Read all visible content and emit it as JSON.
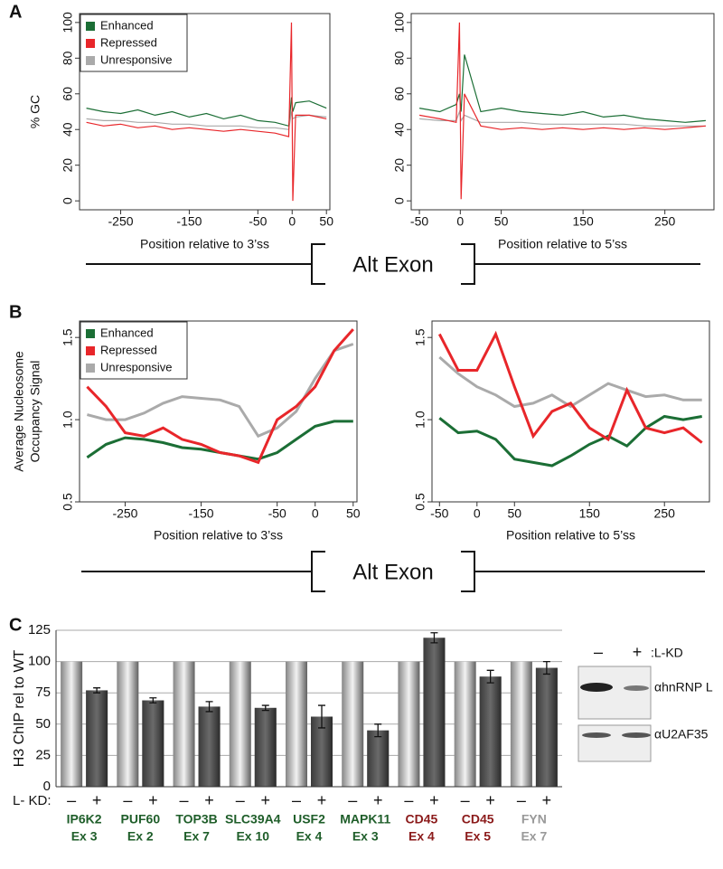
{
  "panel_labels": [
    "A",
    "B",
    "C"
  ],
  "exon_label": "Alt Exon",
  "blot": {
    "lanes": [
      "–",
      "+"
    ],
    "condition": ":L-KD",
    "bands": [
      "αhnRNP L",
      "αU2AF35"
    ]
  },
  "chart_data": [
    {
      "type": "line",
      "ylabel": [
        "% GC"
      ],
      "xlabel": "Position relative to 3’ss",
      "legend": "upper left",
      "x": [
        -300,
        -275,
        -250,
        -225,
        -200,
        -175,
        -150,
        -125,
        -100,
        -75,
        -50,
        -25,
        -5,
        -1,
        1,
        5,
        25,
        50
      ],
      "xlim": [
        -310,
        55
      ],
      "xticks": [
        -250,
        -150,
        -50,
        0,
        50
      ],
      "ylim": [
        -5,
        105
      ],
      "yticks": [
        0,
        20,
        40,
        60,
        80,
        100
      ],
      "series": [
        {
          "name": "Unresponsive",
          "color": "#aaaaaa",
          "values": [
            46,
            45,
            45,
            44,
            44,
            43,
            43,
            42,
            42,
            42,
            41,
            41,
            40,
            50,
            46,
            47,
            48,
            47
          ]
        },
        {
          "name": "Enhanced",
          "color": "#1b6e35",
          "values": [
            52,
            50,
            49,
            51,
            48,
            50,
            47,
            49,
            46,
            48,
            45,
            44,
            42,
            58,
            50,
            55,
            56,
            52
          ]
        },
        {
          "name": "Repressed",
          "color": "#e8262a",
          "values": [
            44,
            42,
            43,
            41,
            42,
            40,
            41,
            40,
            39,
            40,
            39,
            38,
            36,
            100,
            0,
            48,
            48,
            46
          ]
        }
      ]
    },
    {
      "type": "line",
      "x": [
        -50,
        -25,
        -5,
        -1,
        1,
        5,
        25,
        50,
        75,
        100,
        125,
        150,
        175,
        200,
        225,
        250,
        275,
        300
      ],
      "xlim": [
        -60,
        310
      ],
      "xticks": [
        -50,
        0,
        50,
        150,
        250
      ],
      "xlabel": "Position relative to 5’ss",
      "ylim": [
        -5,
        105
      ],
      "yticks": [
        0,
        20,
        40,
        60,
        80,
        100
      ],
      "series": [
        {
          "color": "#aaaaaa",
          "values": [
            46,
            45,
            45,
            50,
            45,
            48,
            44,
            44,
            44,
            43,
            43,
            43,
            43,
            43,
            42,
            42,
            42,
            42
          ]
        },
        {
          "color": "#1b6e35",
          "values": [
            52,
            50,
            54,
            60,
            50,
            82,
            50,
            52,
            50,
            49,
            48,
            50,
            47,
            48,
            46,
            45,
            44,
            45
          ]
        },
        {
          "color": "#e8262a",
          "values": [
            48,
            46,
            44,
            100,
            1,
            60,
            42,
            40,
            41,
            40,
            41,
            40,
            41,
            40,
            41,
            40,
            41,
            42
          ]
        }
      ]
    },
    {
      "type": "line",
      "ylabel": [
        "Average Nucleosome",
        "Occupancy Signal"
      ],
      "xlabel": "Position relative to 3’ss",
      "legend": "upper left",
      "x": [
        -300,
        -275,
        -250,
        -225,
        -200,
        -175,
        -150,
        -125,
        -100,
        -75,
        -50,
        -25,
        0,
        25,
        50
      ],
      "xlim": [
        -310,
        55
      ],
      "xticks": [
        -250,
        -150,
        -50,
        0,
        50
      ],
      "ylim": [
        0.5,
        1.6
      ],
      "yticks": [
        0.5,
        {
          "value": 1,
          "label": "1.0"
        },
        1.5
      ],
      "series": [
        {
          "name": "Unresponsive",
          "color": "#aaaaaa",
          "values": [
            1.03,
            1.0,
            1.0,
            1.04,
            1.1,
            1.14,
            1.13,
            1.12,
            1.08,
            0.9,
            0.95,
            1.05,
            1.25,
            1.42,
            1.46
          ]
        },
        {
          "name": "Enhanced",
          "color": "#1b6e35",
          "values": [
            0.77,
            0.85,
            0.89,
            0.88,
            0.86,
            0.83,
            0.82,
            0.8,
            0.78,
            0.76,
            0.8,
            0.88,
            0.96,
            0.99,
            0.99
          ]
        },
        {
          "name": "Repressed",
          "color": "#e8262a",
          "values": [
            1.2,
            1.08,
            0.92,
            0.9,
            0.95,
            0.88,
            0.85,
            0.8,
            0.78,
            0.74,
            1.0,
            1.08,
            1.2,
            1.42,
            1.55
          ]
        }
      ]
    },
    {
      "type": "line",
      "xlabel": "Position relative to 5’ss",
      "x": [
        -50,
        -25,
        0,
        25,
        50,
        75,
        100,
        125,
        150,
        175,
        200,
        225,
        250,
        275,
        300
      ],
      "xlim": [
        -60,
        310
      ],
      "xticks": [
        -50,
        0,
        50,
        150,
        250
      ],
      "ylim": [
        0.5,
        1.6
      ],
      "yticks": [
        0.5,
        {
          "value": 1,
          "label": "1.0"
        },
        1.5
      ],
      "series": [
        {
          "color": "#aaaaaa",
          "values": [
            1.38,
            1.28,
            1.2,
            1.15,
            1.08,
            1.1,
            1.15,
            1.08,
            1.15,
            1.22,
            1.18,
            1.14,
            1.15,
            1.12,
            1.12
          ]
        },
        {
          "color": "#1b6e35",
          "values": [
            1.01,
            0.92,
            0.93,
            0.88,
            0.76,
            0.74,
            0.72,
            0.78,
            0.85,
            0.9,
            0.84,
            0.95,
            1.02,
            1.0,
            1.02
          ]
        },
        {
          "color": "#e8262a",
          "values": [
            1.52,
            1.3,
            1.3,
            1.52,
            1.2,
            0.9,
            1.05,
            1.1,
            0.95,
            0.88,
            1.18,
            0.95,
            0.92,
            0.95,
            0.86
          ]
        }
      ]
    },
    {
      "type": "bar",
      "ylabel": [
        "H3 ChIP rel to WT"
      ],
      "kd_label": "L- KD:",
      "categories": [
        "IP6K2",
        "PUF60",
        "TOP3B",
        "SLC39A4",
        "USF2",
        "MAPK11",
        "CD45",
        "CD45",
        "FYN"
      ],
      "exons": [
        "Ex 3",
        "Ex 2",
        "Ex 7",
        "Ex 10",
        "Ex 4",
        "Ex 3",
        "Ex 4",
        "Ex 5",
        "Ex 7"
      ],
      "label_colors": [
        "#1f5e2a",
        "#1f5e2a",
        "#1f5e2a",
        "#1f5e2a",
        "#1f5e2a",
        "#1f5e2a",
        "#8b1a1a",
        "#8b1a1a",
        "#999999"
      ],
      "ylim": [
        0,
        125
      ],
      "yticks": [
        0,
        25,
        50,
        75,
        100,
        125
      ],
      "grid": true,
      "series": [
        {
          "name": "–",
          "color": "#f2f2f2",
          "values": [
            100,
            100,
            100,
            100,
            100,
            100,
            100,
            100,
            100
          ]
        },
        {
          "name": "+",
          "color": "#6a6a6a",
          "values": [
            77,
            69,
            64,
            63,
            56,
            45,
            119,
            88,
            95
          ],
          "errors": [
            2,
            2,
            4,
            2,
            9,
            5,
            4,
            5,
            5
          ]
        }
      ]
    }
  ]
}
